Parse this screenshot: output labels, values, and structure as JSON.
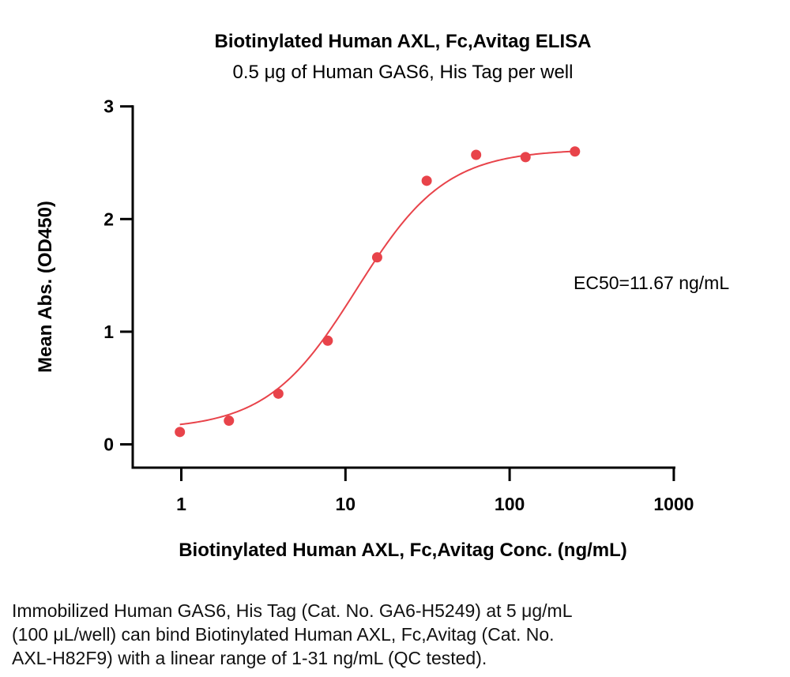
{
  "chart_data": {
    "type": "scatter",
    "title": "Biotinylated Human AXL, Fc,Avitag ELISA",
    "subtitle": "0.5 μg of Human GAS6, His Tag per well",
    "xlabel": "Biotinylated Human AXL, Fc,Avitag Conc. (ng/mL)",
    "ylabel": "Mean Abs. (OD450)",
    "x_scale": "log",
    "xlim": [
      0.5,
      1000
    ],
    "ylim": [
      -0.2,
      3
    ],
    "x_ticks": [
      1,
      10,
      100,
      1000
    ],
    "x_tick_labels": [
      "1",
      "10",
      "100",
      "1000"
    ],
    "y_ticks": [
      0,
      1,
      2,
      3
    ],
    "y_tick_labels": [
      "0",
      "1",
      "2",
      "3"
    ],
    "grid": false,
    "series": [
      {
        "color": "#e8434a",
        "x": [
          0.98,
          1.95,
          3.9,
          7.8,
          15.6,
          31.25,
          62.5,
          125,
          250
        ],
        "y": [
          0.11,
          0.21,
          0.45,
          0.92,
          1.66,
          2.34,
          2.57,
          2.55,
          2.6
        ]
      }
    ],
    "fit": {
      "bottom": 0.13,
      "top": 2.62,
      "ec50": 11.67,
      "hill": 1.6
    },
    "annotation": "EC50=11.67 ng/mL"
  },
  "caption": {
    "lines": [
      "Immobilized Human GAS6, His Tag (Cat. No. GA6-H5249) at 5 μg/mL",
      "(100 μL/well) can bind Biotinylated Human AXL, Fc,Avitag (Cat. No.",
      "AXL-H82F9) with a linear range of 1-31 ng/mL (QC tested)."
    ]
  }
}
